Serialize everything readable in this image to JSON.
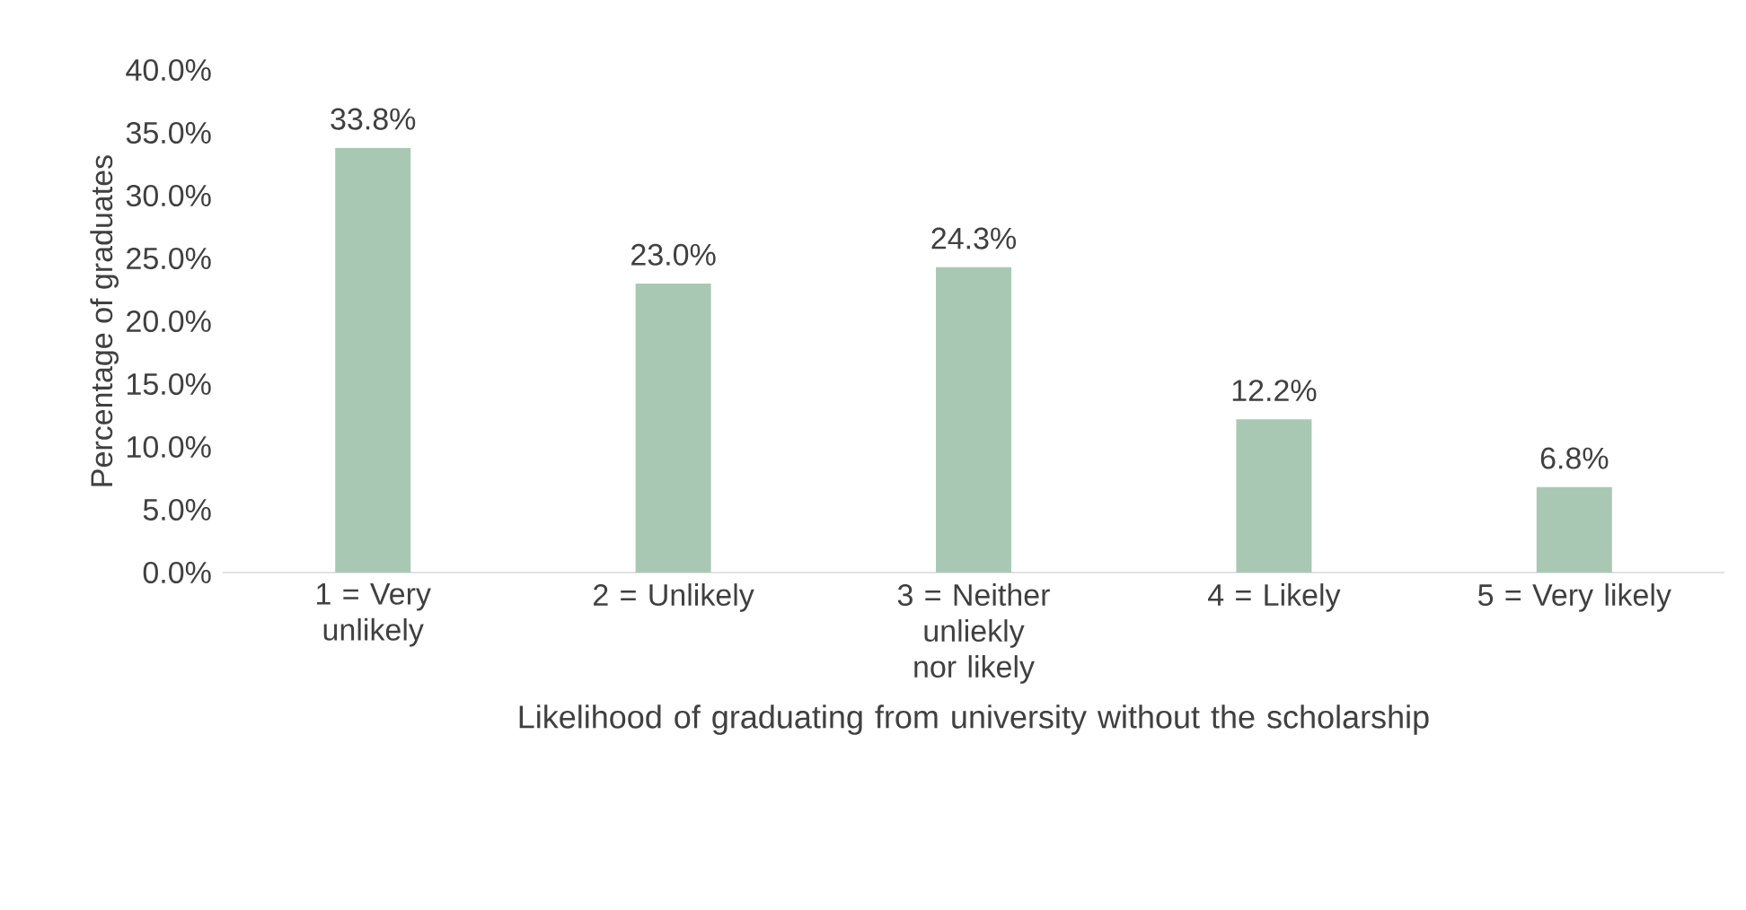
{
  "chart_data": {
    "type": "bar",
    "categories": [
      "1 = Very unlikely",
      "2 = Unlikely",
      "3 = Neither unliekly nor likely",
      "4 = Likely",
      "5 = Very likely"
    ],
    "values": [
      33.8,
      23.0,
      24.3,
      12.2,
      6.8
    ],
    "value_labels": [
      "33.8%",
      "23.0%",
      "24.3%",
      "12.2%",
      "6.8%"
    ],
    "color": "#a9c8b4",
    "xlabel": "Likelihood of graduating from university without the scholarship",
    "ylabel": "Percentage of graduates",
    "ylim": [
      0,
      40
    ],
    "yticks": [
      {
        "value": 0,
        "label": "0.0%"
      },
      {
        "value": 5,
        "label": "5.0%"
      },
      {
        "value": 10,
        "label": "10.0%"
      },
      {
        "value": 15,
        "label": "15.0%"
      },
      {
        "value": 20,
        "label": "20.0%"
      },
      {
        "value": 25,
        "label": "25.0%"
      },
      {
        "value": 30,
        "label": "30.0%"
      },
      {
        "value": 35,
        "label": "35.0%"
      },
      {
        "value": 40,
        "label": "40.0%"
      }
    ]
  }
}
